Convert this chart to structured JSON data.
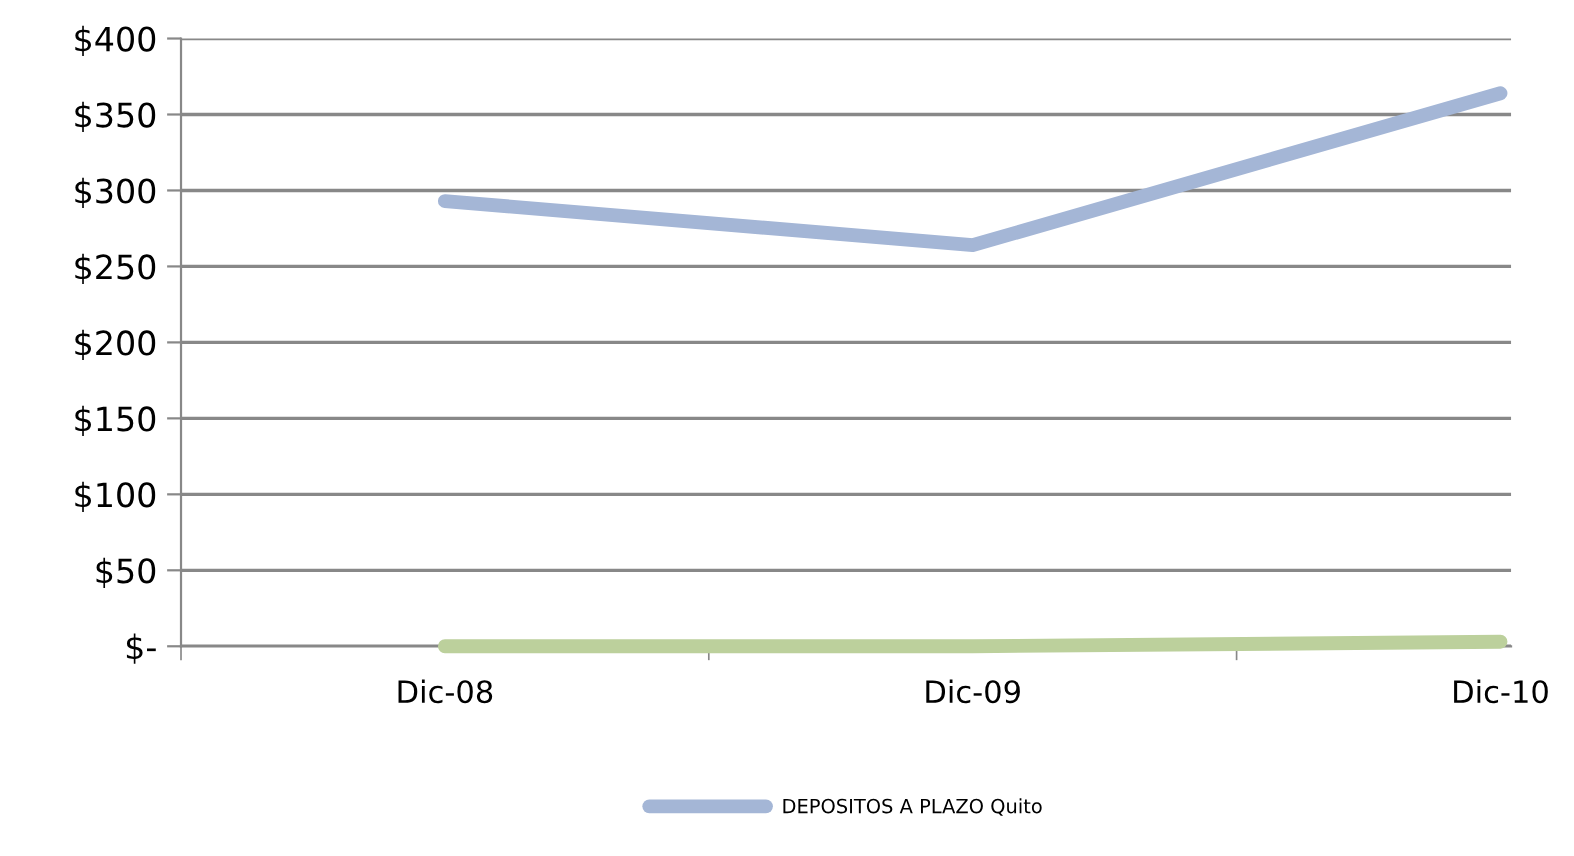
{
  "chart_data": {
    "type": "line",
    "categories": [
      "Dic-08",
      "Dic-09",
      "Dic-10"
    ],
    "series": [
      {
        "name": "DEPOSITOS A PLAZO Quito",
        "color": "#a4b6d6",
        "values": [
          293,
          264,
          364
        ]
      },
      {
        "color": "#bcd09c",
        "values": [
          0,
          0,
          3
        ]
      }
    ],
    "ylim": [
      0,
      400
    ],
    "yticks": [
      {
        "value": 0,
        "label": "$-"
      },
      {
        "value": 50,
        "label": "$50"
      },
      {
        "value": 100,
        "label": "$100"
      },
      {
        "value": 150,
        "label": "$150"
      },
      {
        "value": 200,
        "label": "$200"
      },
      {
        "value": 250,
        "label": "$250"
      },
      {
        "value": 300,
        "label": "$300"
      },
      {
        "value": 350,
        "label": "$350"
      },
      {
        "value": 400,
        "label": "$400"
      }
    ],
    "grid": "y",
    "legend": "bottom",
    "marker": "none",
    "line_style": "solid"
  }
}
